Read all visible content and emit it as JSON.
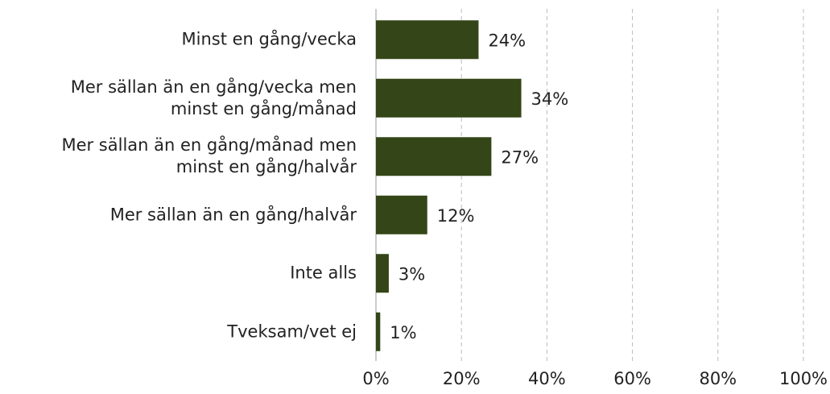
{
  "chart_data": {
    "type": "barh",
    "categories": [
      "Minst en gång/vecka",
      "Mer sällan än en gång/vecka men\nminst en gång/månad",
      "Mer sällan än en gång/månad men\nminst en gång/halvår",
      "Mer sällan än en gång/halvår",
      "Inte alls",
      "Tveksam/vet ej"
    ],
    "values": [
      24,
      34,
      27,
      12,
      3,
      1
    ],
    "value_labels": [
      "24%",
      "34%",
      "27%",
      "12%",
      "3%",
      "1%"
    ],
    "color": "#344517",
    "xlim": [
      0,
      100
    ],
    "xticks": [
      {
        "value": 0,
        "label": "0%"
      },
      {
        "value": 20,
        "label": "20%"
      },
      {
        "value": 40,
        "label": "40%"
      },
      {
        "value": 60,
        "label": "60%"
      },
      {
        "value": 80,
        "label": "80%"
      },
      {
        "value": 100,
        "label": "100%"
      }
    ],
    "grid": true
  }
}
